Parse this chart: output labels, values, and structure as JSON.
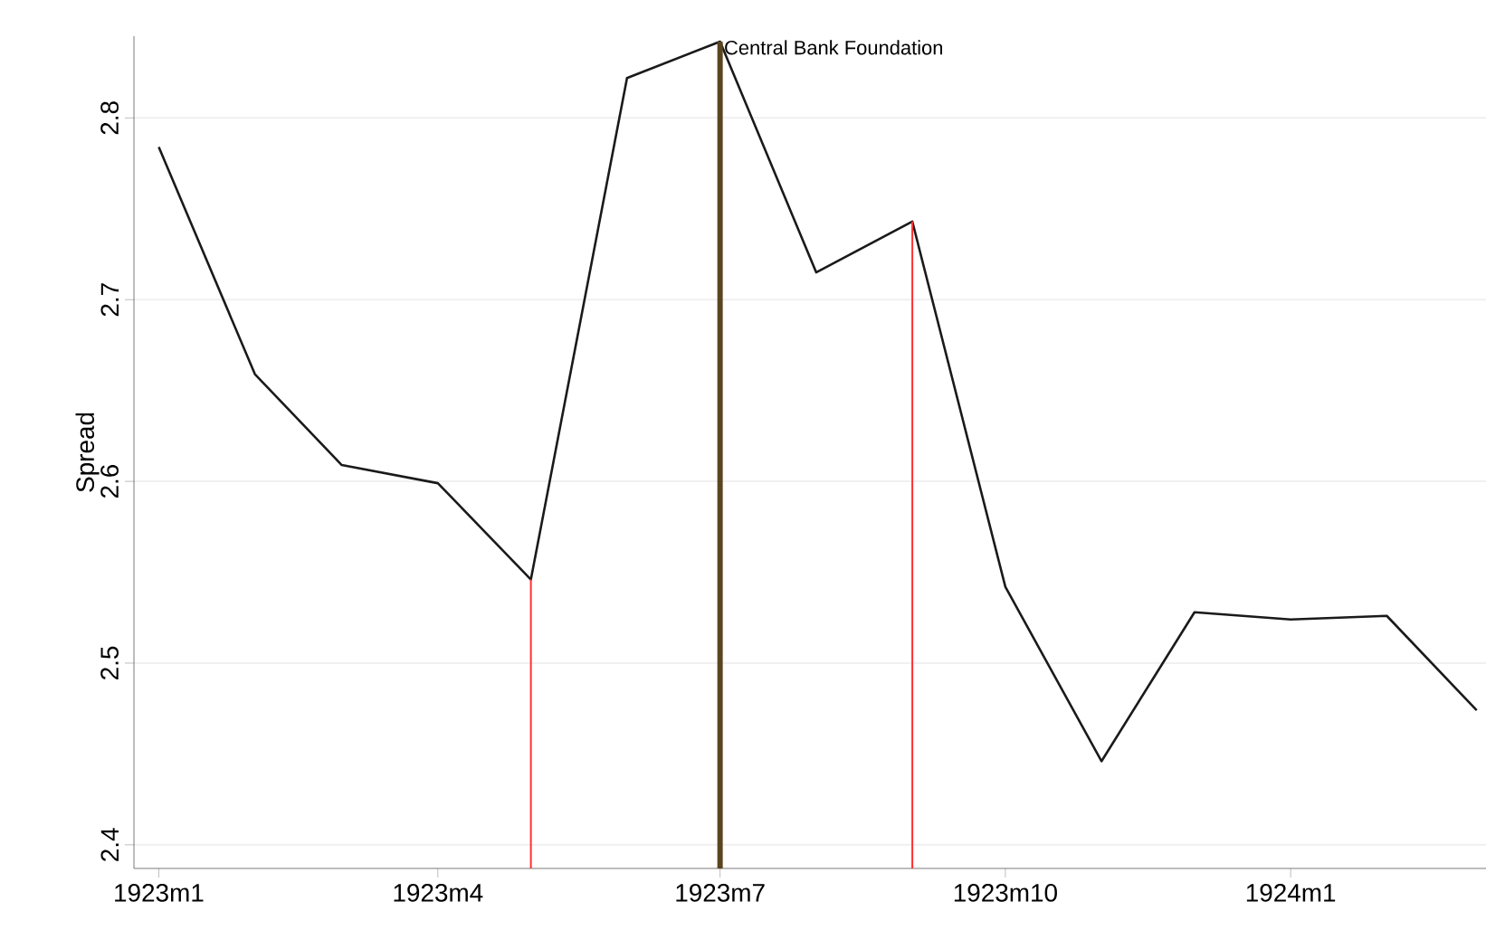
{
  "chart_data": {
    "type": "line",
    "ylabel": "Spread",
    "x": [
      "1923-01",
      "1923-02",
      "1923-03",
      "1923-04",
      "1923-05",
      "1923-06",
      "1923-07",
      "1923-08",
      "1923-09",
      "1923-10",
      "1923-11",
      "1923-12",
      "1924-01",
      "1924-02",
      "1924-03"
    ],
    "series": [
      {
        "color": "#1a1a1a",
        "values": [
          2.784,
          2.659,
          2.609,
          2.599,
          2.546,
          2.822,
          2.842,
          2.715,
          2.743,
          2.542,
          2.446,
          2.528,
          2.524,
          2.526,
          2.474
        ]
      }
    ],
    "xlim": [
      "1922-12-24",
      "1924-03-04"
    ],
    "ylim": [
      2.387,
      2.845
    ],
    "xticks": [
      {
        "value": "1923-01",
        "label": "1923m1"
      },
      {
        "value": "1923-04",
        "label": "1923m4"
      },
      {
        "value": "1923-07",
        "label": "1923m7"
      },
      {
        "value": "1923-10",
        "label": "1923m10"
      },
      {
        "value": "1924-01",
        "label": "1924m1"
      }
    ],
    "yticks": [
      2.4,
      2.5,
      2.6,
      2.7,
      2.8
    ],
    "grid": "y",
    "line_style": "solid",
    "ref_lines": [
      {
        "axis": "x",
        "value": "1923-05",
        "color": "#ff3030"
      },
      {
        "axis": "x",
        "value": "1923-07",
        "color": "#5a4520",
        "label": "Central Bank Foundation"
      },
      {
        "axis": "x",
        "value": "1923-09",
        "color": "#ff3030"
      }
    ]
  }
}
